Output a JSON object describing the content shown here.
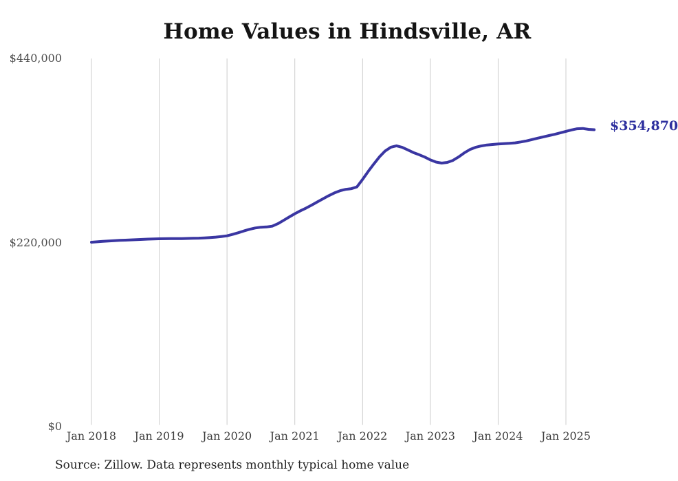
{
  "chart_data": {
    "type": "line",
    "title": "Home Values in Hindsville, AR",
    "frequency": "monthly",
    "x_start": "Jan 2018",
    "x_end": "Jun 2025",
    "x_ticks": [
      "Jan 2018",
      "Jan 2019",
      "Jan 2020",
      "Jan 2021",
      "Jan 2022",
      "Jan 2023",
      "Jan 2024",
      "Jan 2025"
    ],
    "y_ticks": [
      {
        "label": "$0",
        "value": 0
      },
      {
        "label": "$220,000",
        "value": 220000
      },
      {
        "label": "$440,000",
        "value": 440000
      }
    ],
    "ylim": [
      0,
      440000
    ],
    "grid": "vertical-only",
    "legend": "none",
    "end_label": "$354,870",
    "latest_value": 354870,
    "series": [
      {
        "name": "Monthly typical home value",
        "values": [
          220400,
          220900,
          221400,
          221900,
          222300,
          222600,
          222900,
          223200,
          223500,
          223800,
          224100,
          224300,
          224500,
          224600,
          224700,
          224700,
          224800,
          224900,
          225100,
          225300,
          225600,
          226000,
          226500,
          227200,
          228100,
          229800,
          231800,
          233900,
          235900,
          237400,
          238300,
          238700,
          239600,
          242500,
          246500,
          250500,
          254500,
          258000,
          261200,
          264800,
          268600,
          272300,
          276000,
          279300,
          281900,
          283600,
          284400,
          286500,
          295500,
          305000,
          314000,
          322500,
          329500,
          334000,
          335600,
          333800,
          330800,
          327600,
          325000,
          322200,
          318800,
          316200,
          315000,
          315800,
          318200,
          322300,
          327200,
          331200,
          333800,
          335500,
          336600,
          337200,
          337800,
          338200,
          338600,
          339200,
          340200,
          341500,
          343100,
          344800,
          346300,
          347900,
          349400,
          351100,
          352900,
          354600,
          356000,
          356400,
          355300,
          354870
        ]
      }
    ],
    "source_note": "Source: Zillow. Data represents monthly typical home value",
    "colors": {
      "line": "#3a36a2",
      "end_label": "#2d2f9e",
      "grid": "#cccccc",
      "title": "#141414",
      "axis_text": "#434343",
      "source_text": "#222222"
    }
  }
}
